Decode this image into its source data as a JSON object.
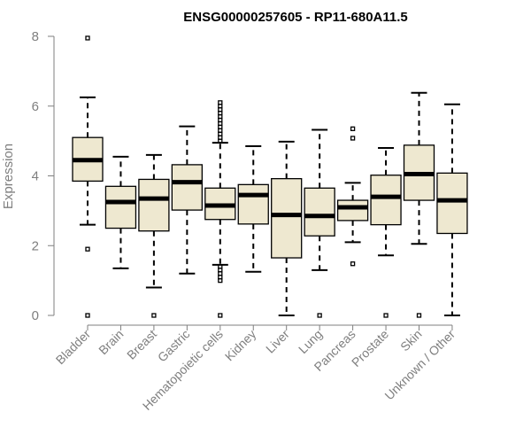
{
  "chart_data": {
    "type": "boxplot",
    "title": "ENSG00000257605 - RP11-680A11.5",
    "xlabel": "",
    "ylabel": "Expression",
    "ylim": [
      0,
      8
    ],
    "yticks": [
      0,
      2,
      4,
      6,
      8
    ],
    "box_fill": "#EEE8D0",
    "categories": [
      "Bladder",
      "Brain",
      "Breast",
      "Gastric",
      "Hematopoietic cells",
      "Kidney",
      "Liver",
      "Lung",
      "Pancreas",
      "Prostate",
      "Skin",
      "Unknown / Other"
    ],
    "series": [
      {
        "name": "Bladder",
        "whisker_low": 2.6,
        "q1": 3.85,
        "median": 4.45,
        "q3": 5.1,
        "whisker_high": 6.25,
        "outliers": [
          7.95,
          1.9,
          0.0
        ]
      },
      {
        "name": "Brain",
        "whisker_low": 1.35,
        "q1": 2.5,
        "median": 3.25,
        "q3": 3.7,
        "whisker_high": 4.55,
        "outliers": []
      },
      {
        "name": "Breast",
        "whisker_low": 0.8,
        "q1": 2.42,
        "median": 3.35,
        "q3": 3.9,
        "whisker_high": 4.6,
        "outliers": [
          0.0
        ]
      },
      {
        "name": "Gastric",
        "whisker_low": 1.2,
        "q1": 3.02,
        "median": 3.82,
        "q3": 4.32,
        "whisker_high": 5.42,
        "outliers": []
      },
      {
        "name": "Hematopoietic cells",
        "whisker_low": 1.45,
        "q1": 2.75,
        "median": 3.15,
        "q3": 3.65,
        "whisker_high": 4.95,
        "outliers": [
          6.1,
          6.0,
          5.9,
          5.8,
          5.7,
          5.6,
          5.5,
          5.4,
          5.3,
          5.2,
          5.1,
          5.0,
          1.4,
          1.3,
          1.2,
          1.1,
          1.0,
          0.0
        ]
      },
      {
        "name": "Kidney",
        "whisker_low": 1.25,
        "q1": 2.62,
        "median": 3.45,
        "q3": 3.75,
        "whisker_high": 4.85,
        "outliers": []
      },
      {
        "name": "Liver",
        "whisker_low": 0.0,
        "q1": 1.65,
        "median": 2.88,
        "q3": 3.92,
        "whisker_high": 4.98,
        "outliers": []
      },
      {
        "name": "Lung",
        "whisker_low": 1.3,
        "q1": 2.28,
        "median": 2.85,
        "q3": 3.65,
        "whisker_high": 5.32,
        "outliers": [
          0.0
        ]
      },
      {
        "name": "Pancreas",
        "whisker_low": 2.1,
        "q1": 2.72,
        "median": 3.1,
        "q3": 3.3,
        "whisker_high": 3.8,
        "outliers": [
          5.35,
          5.08,
          1.48
        ]
      },
      {
        "name": "Prostate",
        "whisker_low": 1.72,
        "q1": 2.6,
        "median": 3.4,
        "q3": 4.02,
        "whisker_high": 4.8,
        "outliers": [
          0.0
        ]
      },
      {
        "name": "Skin",
        "whisker_low": 2.05,
        "q1": 3.3,
        "median": 4.05,
        "q3": 4.88,
        "whisker_high": 6.38,
        "outliers": [
          0.0
        ]
      },
      {
        "name": "Unknown / Other",
        "whisker_low": 0.0,
        "q1": 2.35,
        "median": 3.3,
        "q3": 4.08,
        "whisker_high": 6.05,
        "outliers": []
      }
    ]
  }
}
